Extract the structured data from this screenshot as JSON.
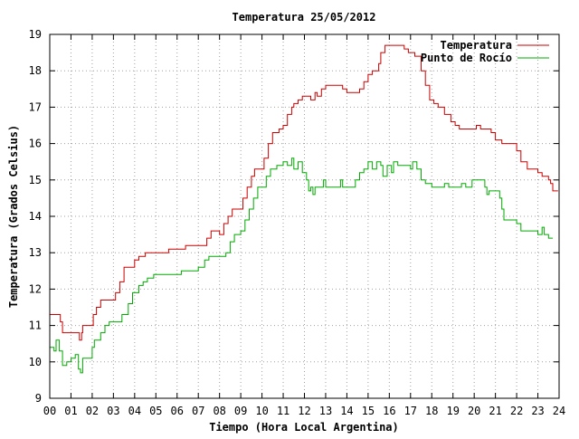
{
  "chart_data": {
    "type": "line",
    "title": "Temperatura 25/05/2012",
    "xlabel": "Tiempo (Hora Local Argentina)",
    "ylabel": "Temperatura (Grados Celsius)",
    "xlim": [
      0,
      24
    ],
    "ylim": [
      9,
      19
    ],
    "x_ticks": [
      "00",
      "01",
      "02",
      "03",
      "04",
      "05",
      "06",
      "07",
      "08",
      "09",
      "10",
      "11",
      "12",
      "13",
      "14",
      "15",
      "16",
      "17",
      "18",
      "19",
      "20",
      "21",
      "22",
      "23",
      "24"
    ],
    "y_ticks": [
      "9",
      "10",
      "11",
      "12",
      "13",
      "14",
      "15",
      "16",
      "17",
      "18",
      "19"
    ],
    "grid": true,
    "legend_position": "top-right",
    "series": [
      {
        "name": "Temperatura",
        "color": "#cc0000",
        "points": [
          [
            0.0,
            11.3
          ],
          [
            0.45,
            11.3
          ],
          [
            0.5,
            11.1
          ],
          [
            0.6,
            10.8
          ],
          [
            1.35,
            10.8
          ],
          [
            1.4,
            10.6
          ],
          [
            1.5,
            10.8
          ],
          [
            1.55,
            11.0
          ],
          [
            2.0,
            11.0
          ],
          [
            2.05,
            11.3
          ],
          [
            2.2,
            11.5
          ],
          [
            2.4,
            11.7
          ],
          [
            2.95,
            11.7
          ],
          [
            3.1,
            11.9
          ],
          [
            3.3,
            12.2
          ],
          [
            3.5,
            12.6
          ],
          [
            3.9,
            12.6
          ],
          [
            4.0,
            12.8
          ],
          [
            4.2,
            12.9
          ],
          [
            4.5,
            13.0
          ],
          [
            5.5,
            13.0
          ],
          [
            5.6,
            13.1
          ],
          [
            6.3,
            13.1
          ],
          [
            6.4,
            13.2
          ],
          [
            7.2,
            13.2
          ],
          [
            7.4,
            13.4
          ],
          [
            7.6,
            13.6
          ],
          [
            8.0,
            13.5
          ],
          [
            8.2,
            13.8
          ],
          [
            8.4,
            14.0
          ],
          [
            8.6,
            14.2
          ],
          [
            9.0,
            14.2
          ],
          [
            9.1,
            14.5
          ],
          [
            9.3,
            14.8
          ],
          [
            9.5,
            15.1
          ],
          [
            9.65,
            15.3
          ],
          [
            10.0,
            15.3
          ],
          [
            10.1,
            15.6
          ],
          [
            10.3,
            16.0
          ],
          [
            10.5,
            16.3
          ],
          [
            10.8,
            16.4
          ],
          [
            11.0,
            16.5
          ],
          [
            11.2,
            16.8
          ],
          [
            11.4,
            17.0
          ],
          [
            11.5,
            17.1
          ],
          [
            11.7,
            17.2
          ],
          [
            11.9,
            17.3
          ],
          [
            12.2,
            17.3
          ],
          [
            12.3,
            17.2
          ],
          [
            12.5,
            17.4
          ],
          [
            12.6,
            17.3
          ],
          [
            12.8,
            17.5
          ],
          [
            13.0,
            17.6
          ],
          [
            13.6,
            17.6
          ],
          [
            13.8,
            17.5
          ],
          [
            14.0,
            17.4
          ],
          [
            14.5,
            17.4
          ],
          [
            14.6,
            17.5
          ],
          [
            14.8,
            17.7
          ],
          [
            15.0,
            17.9
          ],
          [
            15.2,
            18.0
          ],
          [
            15.5,
            18.2
          ],
          [
            15.6,
            18.5
          ],
          [
            15.8,
            18.7
          ],
          [
            16.5,
            18.7
          ],
          [
            16.7,
            18.6
          ],
          [
            16.9,
            18.5
          ],
          [
            17.2,
            18.4
          ],
          [
            17.5,
            18.0
          ],
          [
            17.7,
            17.6
          ],
          [
            17.9,
            17.2
          ],
          [
            18.1,
            17.1
          ],
          [
            18.3,
            17.0
          ],
          [
            18.6,
            16.8
          ],
          [
            18.9,
            16.6
          ],
          [
            19.1,
            16.5
          ],
          [
            19.3,
            16.4
          ],
          [
            20.0,
            16.4
          ],
          [
            20.1,
            16.5
          ],
          [
            20.3,
            16.4
          ],
          [
            20.8,
            16.3
          ],
          [
            21.0,
            16.1
          ],
          [
            21.3,
            16.0
          ],
          [
            21.8,
            16.0
          ],
          [
            22.0,
            15.8
          ],
          [
            22.2,
            15.5
          ],
          [
            22.5,
            15.3
          ],
          [
            22.9,
            15.3
          ],
          [
            23.0,
            15.2
          ],
          [
            23.2,
            15.1
          ],
          [
            23.4,
            15.1
          ],
          [
            23.5,
            15.0
          ],
          [
            23.6,
            14.9
          ],
          [
            23.7,
            14.7
          ],
          [
            23.95,
            14.7
          ]
        ]
      },
      {
        "name": "Punto de Rocío",
        "color": "#00aa00",
        "points": [
          [
            0.0,
            10.4
          ],
          [
            0.2,
            10.3
          ],
          [
            0.3,
            10.6
          ],
          [
            0.45,
            10.3
          ],
          [
            0.6,
            9.9
          ],
          [
            0.8,
            10.0
          ],
          [
            1.0,
            10.1
          ],
          [
            1.2,
            10.2
          ],
          [
            1.35,
            9.8
          ],
          [
            1.45,
            9.7
          ],
          [
            1.55,
            10.1
          ],
          [
            2.0,
            10.4
          ],
          [
            2.1,
            10.6
          ],
          [
            2.4,
            10.8
          ],
          [
            2.6,
            11.0
          ],
          [
            2.8,
            11.1
          ],
          [
            3.2,
            11.1
          ],
          [
            3.4,
            11.3
          ],
          [
            3.7,
            11.6
          ],
          [
            3.9,
            11.9
          ],
          [
            4.1,
            11.9
          ],
          [
            4.2,
            12.1
          ],
          [
            4.4,
            12.2
          ],
          [
            4.6,
            12.3
          ],
          [
            4.9,
            12.4
          ],
          [
            5.7,
            12.4
          ],
          [
            6.0,
            12.4
          ],
          [
            6.2,
            12.5
          ],
          [
            6.9,
            12.5
          ],
          [
            7.0,
            12.6
          ],
          [
            7.3,
            12.8
          ],
          [
            7.5,
            12.9
          ],
          [
            8.0,
            12.9
          ],
          [
            8.3,
            13.0
          ],
          [
            8.5,
            13.3
          ],
          [
            8.7,
            13.5
          ],
          [
            9.0,
            13.6
          ],
          [
            9.2,
            13.9
          ],
          [
            9.4,
            14.2
          ],
          [
            9.6,
            14.5
          ],
          [
            9.8,
            14.8
          ],
          [
            10.0,
            14.8
          ],
          [
            10.2,
            15.1
          ],
          [
            10.4,
            15.3
          ],
          [
            10.7,
            15.4
          ],
          [
            11.0,
            15.5
          ],
          [
            11.2,
            15.4
          ],
          [
            11.4,
            15.6
          ],
          [
            11.5,
            15.3
          ],
          [
            11.7,
            15.5
          ],
          [
            11.9,
            15.2
          ],
          [
            12.1,
            15.0
          ],
          [
            12.2,
            14.7
          ],
          [
            12.3,
            14.8
          ],
          [
            12.4,
            14.6
          ],
          [
            12.5,
            14.8
          ],
          [
            12.8,
            14.8
          ],
          [
            12.9,
            15.0
          ],
          [
            13.0,
            14.8
          ],
          [
            13.5,
            14.8
          ],
          [
            13.7,
            15.0
          ],
          [
            13.8,
            14.8
          ],
          [
            14.2,
            14.8
          ],
          [
            14.4,
            15.0
          ],
          [
            14.6,
            15.2
          ],
          [
            14.8,
            15.3
          ],
          [
            15.0,
            15.5
          ],
          [
            15.2,
            15.3
          ],
          [
            15.4,
            15.5
          ],
          [
            15.6,
            15.4
          ],
          [
            15.7,
            15.1
          ],
          [
            15.9,
            15.4
          ],
          [
            16.1,
            15.2
          ],
          [
            16.2,
            15.5
          ],
          [
            16.4,
            15.4
          ],
          [
            16.7,
            15.4
          ],
          [
            16.9,
            15.4
          ],
          [
            17.0,
            15.3
          ],
          [
            17.1,
            15.5
          ],
          [
            17.3,
            15.3
          ],
          [
            17.5,
            15.0
          ],
          [
            17.7,
            14.9
          ],
          [
            18.0,
            14.8
          ],
          [
            18.3,
            14.8
          ],
          [
            18.6,
            14.9
          ],
          [
            18.8,
            14.8
          ],
          [
            19.1,
            14.8
          ],
          [
            19.4,
            14.9
          ],
          [
            19.6,
            14.8
          ],
          [
            19.9,
            15.0
          ],
          [
            20.3,
            15.0
          ],
          [
            20.5,
            14.8
          ],
          [
            20.6,
            14.6
          ],
          [
            20.7,
            14.7
          ],
          [
            20.8,
            14.7
          ],
          [
            21.1,
            14.7
          ],
          [
            21.2,
            14.5
          ],
          [
            21.3,
            14.2
          ],
          [
            21.4,
            13.9
          ],
          [
            21.8,
            13.9
          ],
          [
            22.0,
            13.8
          ],
          [
            22.2,
            13.6
          ],
          [
            22.5,
            13.6
          ],
          [
            22.8,
            13.6
          ],
          [
            23.0,
            13.5
          ],
          [
            23.2,
            13.7
          ],
          [
            23.3,
            13.5
          ],
          [
            23.5,
            13.4
          ],
          [
            23.7,
            13.4
          ]
        ]
      }
    ]
  }
}
